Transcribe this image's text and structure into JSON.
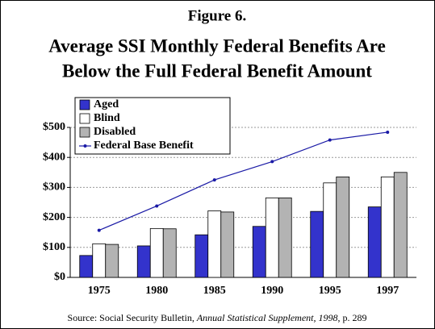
{
  "chart_data": {
    "type": "bar",
    "figure_label": "Figure 6.",
    "title_lines": [
      "Average SSI Monthly Federal Benefits Are",
      "Below the Full Federal Benefit Amount"
    ],
    "categories": [
      "1975",
      "1980",
      "1985",
      "1990",
      "1995",
      "1997"
    ],
    "series": [
      {
        "name": "Aged",
        "color": "#3333cc",
        "values": [
          73,
          105,
          142,
          170,
          220,
          235
        ]
      },
      {
        "name": "Blind",
        "color": "#ffffff",
        "values": [
          112,
          163,
          222,
          265,
          315,
          335
        ]
      },
      {
        "name": "Disabled",
        "color": "#b3b3b3",
        "values": [
          110,
          162,
          218,
          265,
          335,
          350
        ]
      },
      {
        "name": "Federal Base Benefit",
        "color": "#1a1aa6",
        "type": "line",
        "values": [
          157,
          238,
          325,
          386,
          458,
          484
        ]
      }
    ],
    "ylim": [
      0,
      500
    ],
    "yticks": [
      {
        "value": 0,
        "label": "$0"
      },
      {
        "value": 100,
        "label": "$100"
      },
      {
        "value": 200,
        "label": "$200"
      },
      {
        "value": 300,
        "label": "$300"
      },
      {
        "value": 400,
        "label": "$400"
      },
      {
        "value": 500,
        "label": "$500"
      }
    ],
    "grid": true,
    "legend": "top-left",
    "source": {
      "prefix": "Source: Social Security Bulletin, ",
      "title": "Annual Statistical Supplement, 1998",
      "suffix": ", p. 289"
    }
  }
}
